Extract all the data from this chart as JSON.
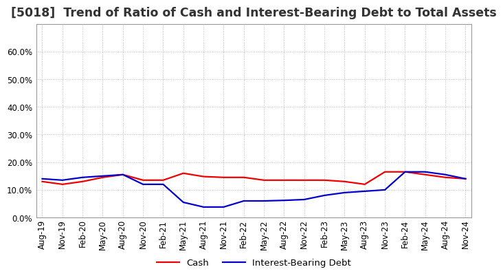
{
  "title": "[5018]  Trend of Ratio of Cash and Interest-Bearing Debt to Total Assets",
  "x_labels": [
    "Aug-19",
    "Nov-19",
    "Feb-20",
    "May-20",
    "Aug-20",
    "Nov-20",
    "Feb-21",
    "May-21",
    "Aug-21",
    "Nov-21",
    "Feb-22",
    "May-22",
    "Aug-22",
    "Nov-22",
    "Feb-23",
    "May-23",
    "Aug-23",
    "Nov-23",
    "Feb-24",
    "May-24",
    "Aug-24",
    "Nov-24"
  ],
  "cash": [
    0.13,
    0.12,
    0.13,
    0.145,
    0.155,
    0.135,
    0.135,
    0.16,
    0.148,
    0.145,
    0.145,
    0.135,
    0.135,
    0.135,
    0.135,
    0.13,
    0.12,
    0.165,
    0.165,
    0.155,
    0.145,
    0.14
  ],
  "debt": [
    0.14,
    0.135,
    0.145,
    0.15,
    0.155,
    0.12,
    0.12,
    0.055,
    0.038,
    0.038,
    0.06,
    0.06,
    0.062,
    0.065,
    0.08,
    0.09,
    0.095,
    0.1,
    0.165,
    0.165,
    0.155,
    0.14
  ],
  "cash_color": "#ee0000",
  "debt_color": "#0000cc",
  "ylim_min": 0.0,
  "ylim_max": 0.7,
  "yticks": [
    0.0,
    0.1,
    0.2,
    0.3,
    0.4,
    0.5,
    0.6
  ],
  "background_color": "#ffffff",
  "plot_bg_color": "#ffffff",
  "grid_color": "#bbbbbb",
  "title_fontsize": 12.5,
  "axis_fontsize": 8.5,
  "legend_cash": "Cash",
  "legend_debt": "Interest-Bearing Debt",
  "line_width": 1.6
}
